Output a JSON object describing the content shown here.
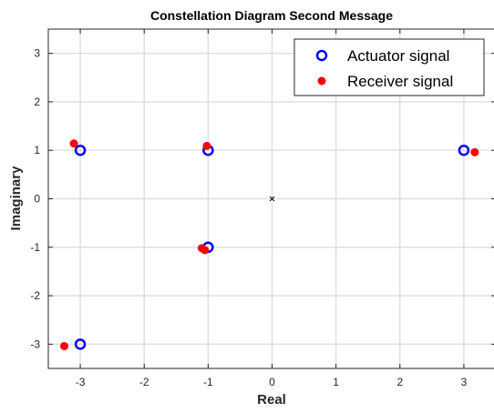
{
  "chart_data": {
    "type": "scatter",
    "title": "Constellation Diagram Second Message",
    "xlabel": "Real",
    "ylabel": "Imaginary",
    "xlim": [
      -3.5,
      3.5
    ],
    "ylim": [
      -3.5,
      3.5
    ],
    "xticks": [
      -3,
      -2,
      -1,
      0,
      1,
      2,
      3
    ],
    "yticks": [
      -3,
      -2,
      -1,
      0,
      1,
      2,
      3
    ],
    "xtick_labels": [
      "-3",
      "-2",
      "-1",
      "0",
      "1",
      "2",
      "3"
    ],
    "ytick_labels": [
      "-3",
      "-2",
      "-1",
      "0",
      "1",
      "2",
      "3"
    ],
    "grid": true,
    "legend_position": "top-right",
    "origin_marker": {
      "x": 0,
      "y": 0,
      "symbol": "x",
      "color": "#000000"
    },
    "series": [
      {
        "name": "Actuator signal",
        "marker": "open-circle",
        "color": "#0000ff",
        "points": [
          {
            "x": -3,
            "y": 1
          },
          {
            "x": -1,
            "y": 1
          },
          {
            "x": 3,
            "y": 1
          },
          {
            "x": -1,
            "y": -1
          },
          {
            "x": -3,
            "y": -3
          }
        ]
      },
      {
        "name": "Receiver signal",
        "marker": "filled-dot",
        "color": "#ff0000",
        "points": [
          {
            "x": -3.1,
            "y": 1.14
          },
          {
            "x": -1.02,
            "y": 1.09
          },
          {
            "x": 3.17,
            "y": 0.96
          },
          {
            "x": -1.1,
            "y": -1.02
          },
          {
            "x": -1.05,
            "y": -1.06
          },
          {
            "x": -3.25,
            "y": -3.04
          }
        ]
      }
    ]
  }
}
